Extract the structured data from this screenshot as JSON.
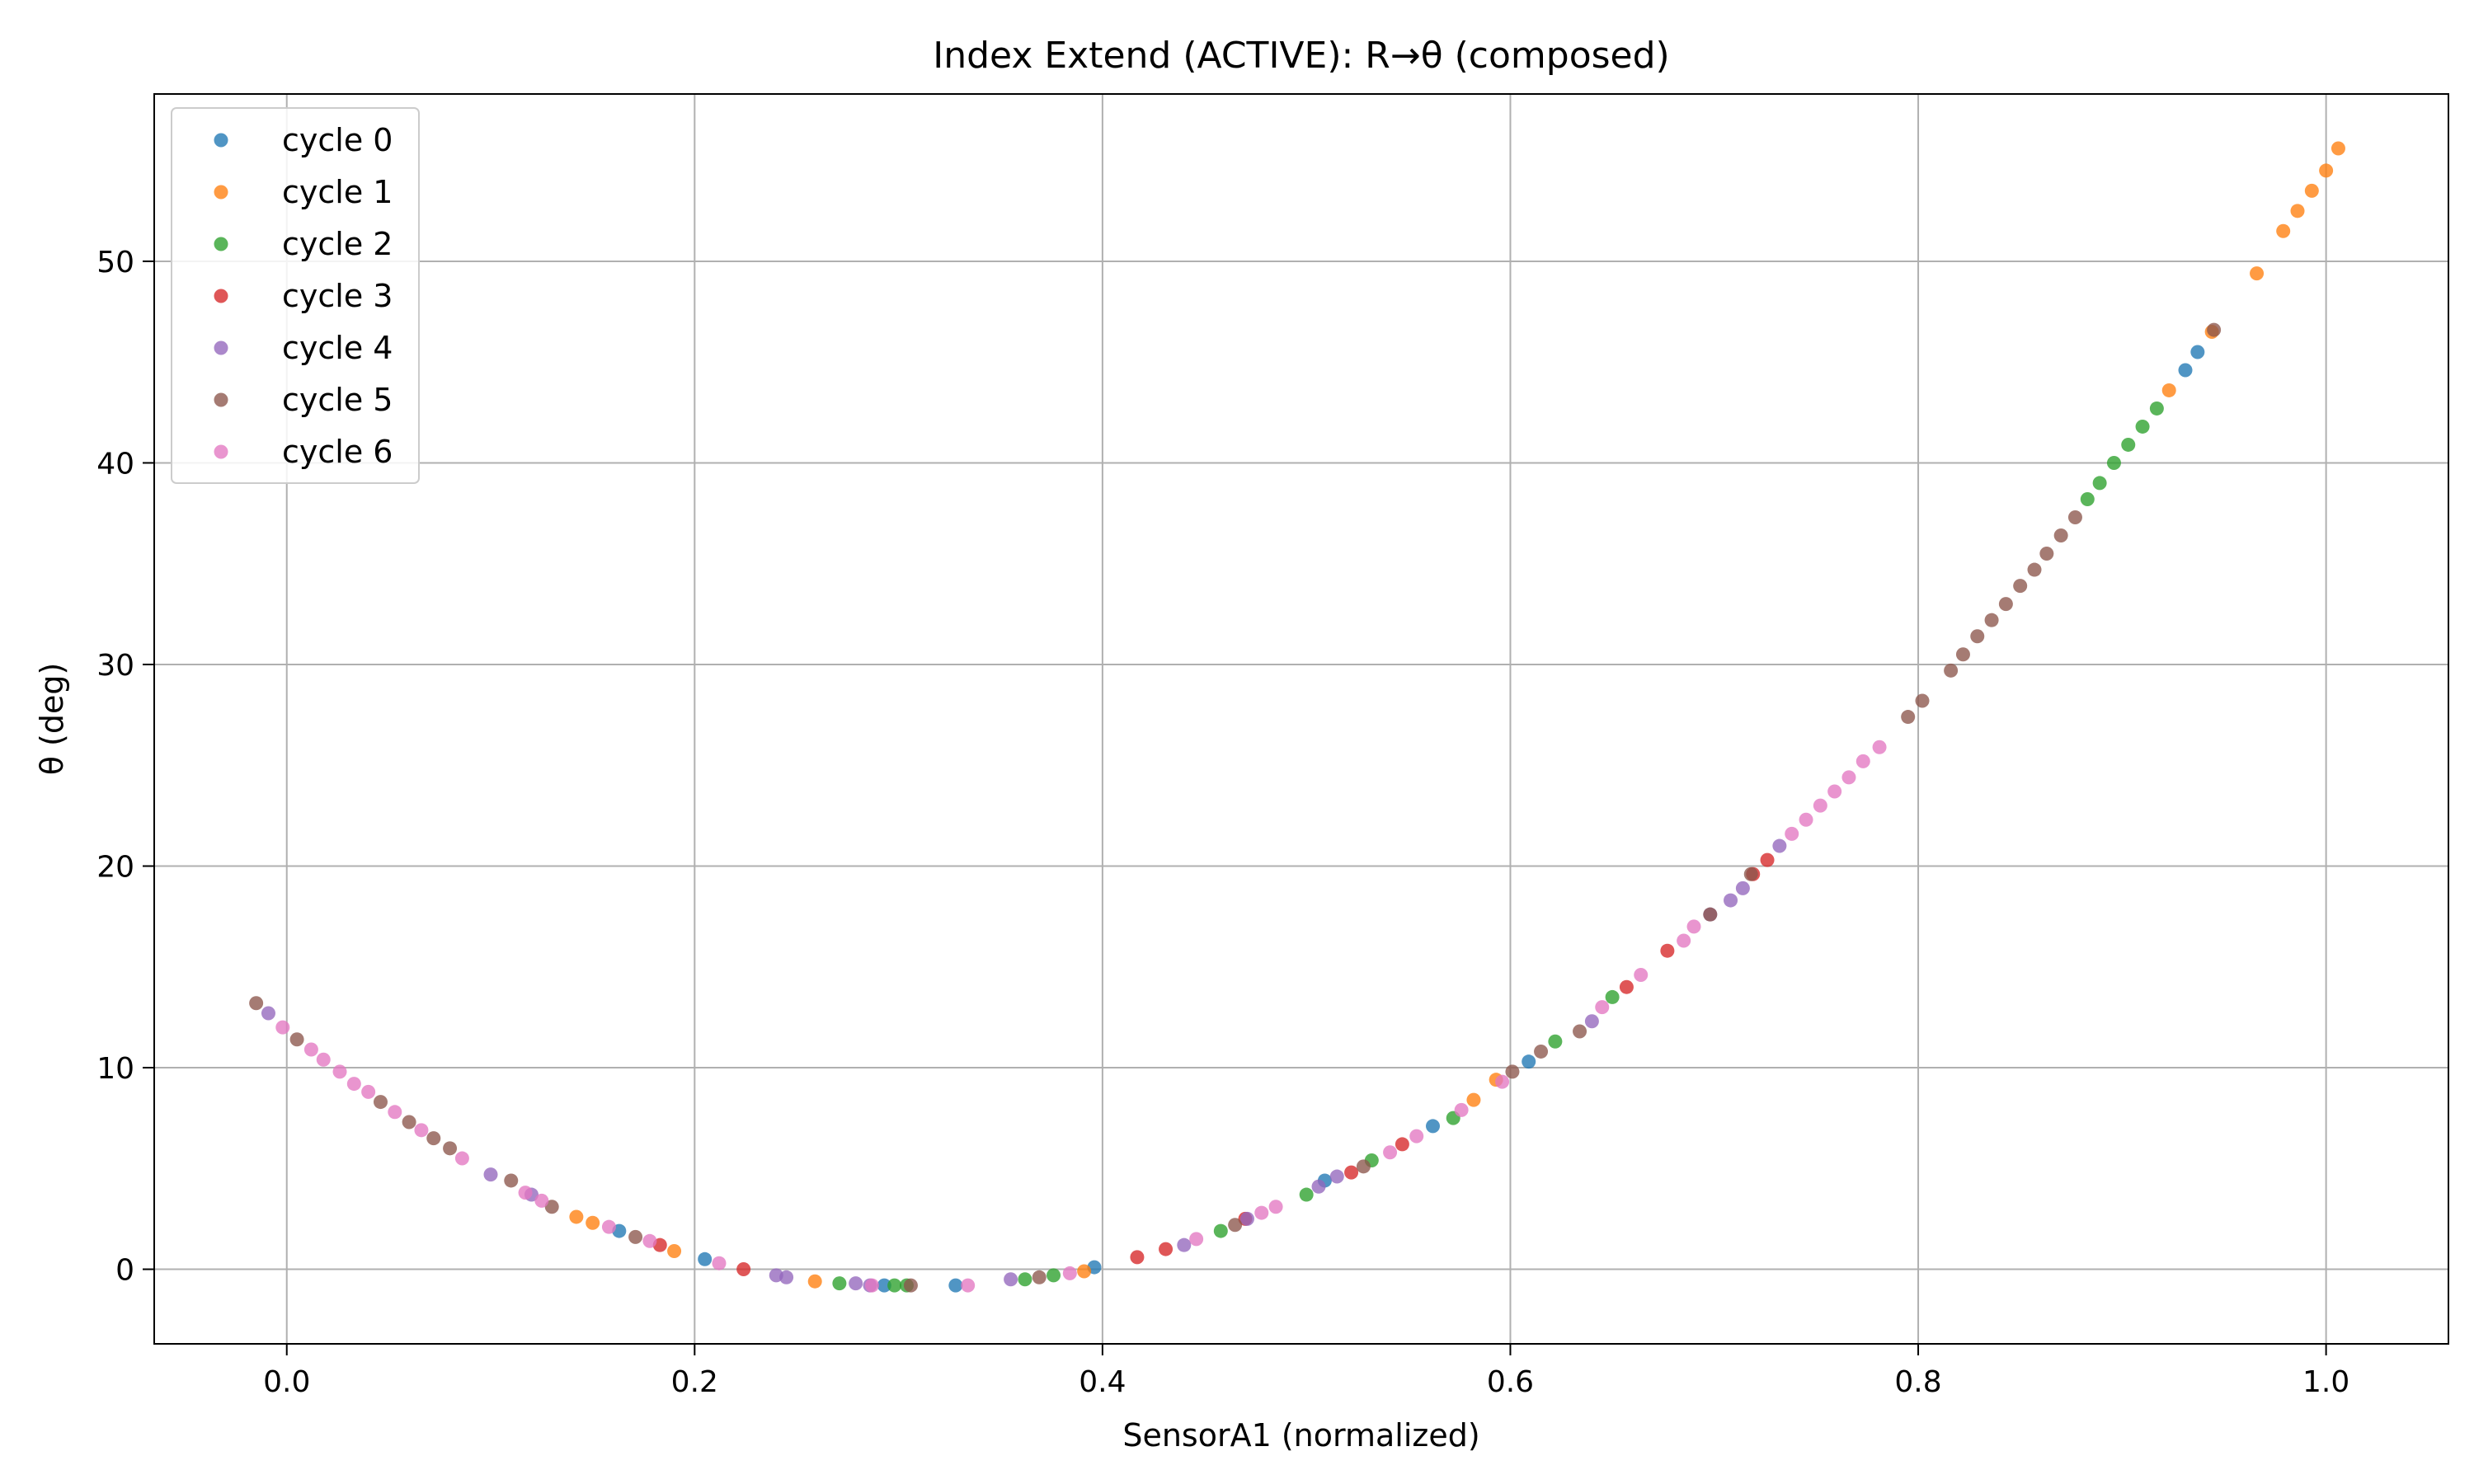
{
  "chart_data": {
    "type": "scatter",
    "title": "Index Extend (ACTIVE): R→θ (composed)",
    "xlabel": "SensorA1 (normalized)",
    "ylabel": "θ (deg)",
    "xlim": [
      -0.065,
      1.06
    ],
    "ylim": [
      -3.7,
      58.3
    ],
    "xticks": [
      0.0,
      0.2,
      0.4,
      0.6,
      0.8,
      1.0
    ],
    "xtick_labels": [
      "0.0",
      "0.2",
      "0.4",
      "0.6",
      "0.8",
      "1.0"
    ],
    "yticks": [
      0,
      10,
      20,
      30,
      40,
      50
    ],
    "ytick_labels": [
      "0",
      "10",
      "20",
      "30",
      "40",
      "50"
    ],
    "grid": true,
    "legend_position": "top-left",
    "series": [
      {
        "name": "cycle 0",
        "color": "#1f77b4",
        "points": [
          [
            0.163,
            1.9
          ],
          [
            0.205,
            0.5
          ],
          [
            0.293,
            -0.8
          ],
          [
            0.328,
            -0.8
          ],
          [
            0.396,
            0.1
          ],
          [
            0.509,
            4.4
          ],
          [
            0.562,
            7.1
          ],
          [
            0.609,
            10.3
          ],
          [
            0.931,
            44.6
          ],
          [
            0.937,
            45.5
          ]
        ]
      },
      {
        "name": "cycle 1",
        "color": "#ff7f0e",
        "points": [
          [
            0.142,
            2.6
          ],
          [
            0.15,
            2.3
          ],
          [
            0.19,
            0.9
          ],
          [
            0.259,
            -0.6
          ],
          [
            0.391,
            -0.1
          ],
          [
            0.582,
            8.4
          ],
          [
            0.593,
            9.4
          ],
          [
            0.923,
            43.6
          ],
          [
            0.944,
            46.5
          ],
          [
            0.966,
            49.4
          ],
          [
            0.979,
            51.5
          ],
          [
            0.986,
            52.5
          ],
          [
            0.993,
            53.5
          ],
          [
            1.0,
            54.5
          ],
          [
            1.006,
            55.6
          ]
        ]
      },
      {
        "name": "cycle 2",
        "color": "#2ca02c",
        "points": [
          [
            0.271,
            -0.7
          ],
          [
            0.298,
            -0.8
          ],
          [
            0.304,
            -0.8
          ],
          [
            0.362,
            -0.5
          ],
          [
            0.376,
            -0.3
          ],
          [
            0.458,
            1.9
          ],
          [
            0.5,
            3.7
          ],
          [
            0.532,
            5.4
          ],
          [
            0.572,
            7.5
          ],
          [
            0.622,
            11.3
          ],
          [
            0.65,
            13.5
          ],
          [
            0.883,
            38.2
          ],
          [
            0.889,
            39.0
          ],
          [
            0.896,
            40.0
          ],
          [
            0.903,
            40.9
          ],
          [
            0.91,
            41.8
          ],
          [
            0.917,
            42.7
          ]
        ]
      },
      {
        "name": "cycle 3",
        "color": "#d62728",
        "points": [
          [
            0.183,
            1.2
          ],
          [
            0.224,
            0.0
          ],
          [
            0.417,
            0.6
          ],
          [
            0.431,
            1.0
          ],
          [
            0.47,
            2.5
          ],
          [
            0.522,
            4.8
          ],
          [
            0.547,
            6.2
          ],
          [
            0.657,
            14.0
          ],
          [
            0.677,
            15.8
          ],
          [
            0.719,
            19.6
          ],
          [
            0.726,
            20.3
          ]
        ]
      },
      {
        "name": "cycle 4",
        "color": "#9467bd",
        "points": [
          [
            -0.009,
            12.7
          ],
          [
            0.1,
            4.7
          ],
          [
            0.12,
            3.7
          ],
          [
            0.24,
            -0.3
          ],
          [
            0.245,
            -0.4
          ],
          [
            0.279,
            -0.7
          ],
          [
            0.286,
            -0.8
          ],
          [
            0.355,
            -0.5
          ],
          [
            0.44,
            1.2
          ],
          [
            0.471,
            2.5
          ],
          [
            0.506,
            4.1
          ],
          [
            0.515,
            4.6
          ],
          [
            0.64,
            12.3
          ],
          [
            0.698,
            17.6
          ],
          [
            0.708,
            18.3
          ],
          [
            0.714,
            18.9
          ],
          [
            0.732,
            21.0
          ]
        ]
      },
      {
        "name": "cycle 5",
        "color": "#8c564b",
        "points": [
          [
            -0.015,
            13.2
          ],
          [
            0.005,
            11.4
          ],
          [
            0.046,
            8.3
          ],
          [
            0.06,
            7.3
          ],
          [
            0.072,
            6.5
          ],
          [
            0.08,
            6.0
          ],
          [
            0.11,
            4.4
          ],
          [
            0.13,
            3.1
          ],
          [
            0.171,
            1.6
          ],
          [
            0.306,
            -0.8
          ],
          [
            0.369,
            -0.4
          ],
          [
            0.465,
            2.2
          ],
          [
            0.528,
            5.1
          ],
          [
            0.601,
            9.8
          ],
          [
            0.615,
            10.8
          ],
          [
            0.634,
            11.8
          ],
          [
            0.698,
            17.6
          ],
          [
            0.718,
            19.6
          ],
          [
            0.795,
            27.4
          ],
          [
            0.802,
            28.2
          ],
          [
            0.816,
            29.7
          ],
          [
            0.822,
            30.5
          ],
          [
            0.829,
            31.4
          ],
          [
            0.836,
            32.2
          ],
          [
            0.843,
            33.0
          ],
          [
            0.85,
            33.9
          ],
          [
            0.857,
            34.7
          ],
          [
            0.863,
            35.5
          ],
          [
            0.87,
            36.4
          ],
          [
            0.877,
            37.3
          ],
          [
            0.945,
            46.6
          ]
        ]
      },
      {
        "name": "cycle 6",
        "color": "#e377c2",
        "points": [
          [
            -0.002,
            12.0
          ],
          [
            0.012,
            10.9
          ],
          [
            0.018,
            10.4
          ],
          [
            0.026,
            9.8
          ],
          [
            0.033,
            9.2
          ],
          [
            0.04,
            8.8
          ],
          [
            0.053,
            7.8
          ],
          [
            0.066,
            6.9
          ],
          [
            0.086,
            5.5
          ],
          [
            0.117,
            3.8
          ],
          [
            0.125,
            3.4
          ],
          [
            0.158,
            2.1
          ],
          [
            0.178,
            1.4
          ],
          [
            0.212,
            0.3
          ],
          [
            0.287,
            -0.8
          ],
          [
            0.334,
            -0.8
          ],
          [
            0.384,
            -0.2
          ],
          [
            0.446,
            1.5
          ],
          [
            0.478,
            2.8
          ],
          [
            0.485,
            3.1
          ],
          [
            0.541,
            5.8
          ],
          [
            0.554,
            6.6
          ],
          [
            0.576,
            7.9
          ],
          [
            0.596,
            9.3
          ],
          [
            0.645,
            13.0
          ],
          [
            0.664,
            14.6
          ],
          [
            0.685,
            16.3
          ],
          [
            0.69,
            17.0
          ],
          [
            0.738,
            21.6
          ],
          [
            0.745,
            22.3
          ],
          [
            0.752,
            23.0
          ],
          [
            0.759,
            23.7
          ],
          [
            0.766,
            24.4
          ],
          [
            0.773,
            25.2
          ],
          [
            0.781,
            25.9
          ]
        ]
      }
    ]
  }
}
